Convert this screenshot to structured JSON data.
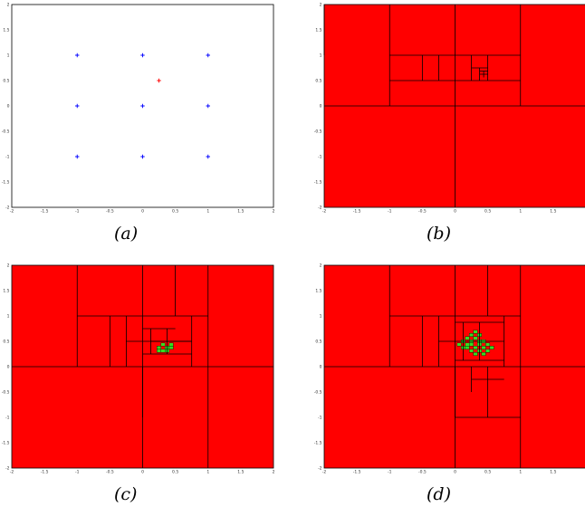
{
  "captions": {
    "a": "(a)",
    "b": "(b)",
    "c": "(c)",
    "d": "(d)"
  },
  "colors": {
    "fill": "#ff0000",
    "plus_grid": "#0000ff",
    "plus_target": "#ff0000",
    "leaf": "#33dd22",
    "line": "#000000"
  },
  "chart_data": [
    {
      "type": "scatter",
      "panel": "a",
      "xlim": [
        -2,
        2
      ],
      "ylim": [
        -2,
        2
      ],
      "xticks": [
        "-2",
        "-1.5",
        "-1",
        "-0.5",
        "0",
        "0.5",
        "1",
        "1.5",
        "2"
      ],
      "yticks": [
        "2",
        "1.5",
        "1",
        "0.5",
        "0",
        "-0.5",
        "-1",
        "-1.5",
        "-2"
      ],
      "series": [
        {
          "points": [
            [
              -1,
              1
            ],
            [
              0,
              1
            ],
            [
              1,
              1
            ],
            [
              -1,
              0
            ],
            [
              0,
              0
            ],
            [
              1,
              0
            ],
            [
              -1,
              -1
            ],
            [
              0,
              -1
            ],
            [
              1,
              -1
            ]
          ],
          "color": "#0000ff",
          "marker": "+"
        },
        {
          "points": [
            [
              0.25,
              0.5
            ]
          ],
          "color": "#ff0000",
          "marker": "+"
        }
      ]
    },
    {
      "type": "subdivision",
      "panel": "b",
      "xlim": [
        -2,
        2
      ],
      "ylim": [
        -2,
        2
      ],
      "xticks": [
        "-2",
        "-1.5",
        "-1",
        "-0.5",
        "0",
        "0.5",
        "1",
        "1.5"
      ],
      "yticks": [
        "2",
        "1.5",
        "1",
        "0.5",
        "0",
        "-0.5",
        "-1",
        "-1.5",
        "-2"
      ],
      "lines": [
        [
          [
            -2,
            0
          ],
          [
            2,
            0
          ]
        ],
        [
          [
            0,
            -2
          ],
          [
            0,
            2
          ]
        ],
        [
          [
            -1,
            0
          ],
          [
            -1,
            2
          ]
        ],
        [
          [
            1,
            0
          ],
          [
            1,
            2
          ]
        ],
        [
          [
            -1,
            1
          ],
          [
            1,
            1
          ]
        ],
        [
          [
            -2,
            1
          ],
          [
            -2,
            2
          ]
        ],
        [
          [
            -1,
            0.5
          ],
          [
            1,
            0.5
          ]
        ],
        [
          [
            -0.5,
            0.5
          ],
          [
            -0.5,
            1
          ]
        ],
        [
          [
            0.5,
            0.5
          ],
          [
            0.5,
            1
          ]
        ],
        [
          [
            -0.25,
            0.5
          ],
          [
            -0.25,
            1
          ]
        ],
        [
          [
            0.25,
            0.5
          ],
          [
            0.25,
            1
          ]
        ],
        [
          [
            0.25,
            0.75
          ],
          [
            0.5,
            0.75
          ]
        ],
        [
          [
            0.375,
            0.5
          ],
          [
            0.375,
            0.75
          ]
        ],
        [
          [
            0.375,
            0.625
          ],
          [
            0.5,
            0.625
          ]
        ],
        [
          [
            0.4375,
            0.5625
          ],
          [
            0.4375,
            0.6875
          ]
        ],
        [
          [
            0.375,
            0.6875
          ],
          [
            0.5,
            0.6875
          ]
        ]
      ],
      "leaf_cells": []
    },
    {
      "type": "subdivision",
      "panel": "c",
      "xlim": [
        -2,
        2
      ],
      "ylim": [
        -2,
        2
      ],
      "xticks": [
        "-2",
        "-1.5",
        "-1",
        "-0.5",
        "0",
        "0.5",
        "1",
        "1.5",
        "2"
      ],
      "yticks": [
        "2",
        "1.5",
        "1",
        "0.5",
        "0",
        "-0.5",
        "-1",
        "-1.5",
        "-2"
      ],
      "lines": [
        [
          [
            -2,
            0
          ],
          [
            2,
            0
          ]
        ],
        [
          [
            0,
            -2
          ],
          [
            0,
            2
          ]
        ],
        [
          [
            -1,
            0
          ],
          [
            -1,
            2
          ]
        ],
        [
          [
            1,
            0
          ],
          [
            1,
            2
          ]
        ],
        [
          [
            -1,
            1
          ],
          [
            1,
            1
          ]
        ],
        [
          [
            0,
            -1
          ],
          [
            0,
            0
          ]
        ],
        [
          [
            1,
            -2
          ],
          [
            1,
            0
          ]
        ],
        [
          [
            0.5,
            1
          ],
          [
            0.5,
            2
          ]
        ],
        [
          [
            -0.5,
            0
          ],
          [
            -0.5,
            1
          ]
        ],
        [
          [
            -0.25,
            0
          ],
          [
            -0.25,
            1
          ]
        ],
        [
          [
            0.75,
            0
          ],
          [
            0.75,
            1
          ]
        ],
        [
          [
            -0.25,
            0.5
          ],
          [
            0.75,
            0.5
          ]
        ],
        [
          [
            0,
            0.75
          ],
          [
            0.5,
            0.75
          ]
        ],
        [
          [
            0.125,
            0.25
          ],
          [
            0.125,
            0.75
          ]
        ],
        [
          [
            0.375,
            0.25
          ],
          [
            0.375,
            0.75
          ]
        ],
        [
          [
            0.125,
            0.5
          ],
          [
            0.75,
            0.5
          ]
        ],
        [
          [
            0,
            0.25
          ],
          [
            0.75,
            0.25
          ]
        ]
      ],
      "leaf_cells": [
        [
          0.25,
          0.375
        ],
        [
          0.3125,
          0.4375
        ],
        [
          0.375,
          0.375
        ],
        [
          0.4375,
          0.4375
        ],
        [
          0.3125,
          0.3125
        ],
        [
          0.375,
          0.3125
        ],
        [
          0.25,
          0.3125
        ],
        [
          0.4375,
          0.375
        ]
      ]
    },
    {
      "type": "subdivision",
      "panel": "d",
      "xlim": [
        -2,
        2
      ],
      "ylim": [
        -2,
        2
      ],
      "xticks": [
        "-2",
        "-1.5",
        "-1",
        "-0.5",
        "0",
        "0.5",
        "1",
        "1.5"
      ],
      "yticks": [
        "2",
        "1.5",
        "1",
        "0.5",
        "0",
        "-0.5",
        "-1",
        "-1.5",
        "-2"
      ],
      "lines": [
        [
          [
            -2,
            0
          ],
          [
            2,
            0
          ]
        ],
        [
          [
            0,
            -2
          ],
          [
            0,
            2
          ]
        ],
        [
          [
            -1,
            0
          ],
          [
            -1,
            2
          ]
        ],
        [
          [
            1,
            0
          ],
          [
            1,
            2
          ]
        ],
        [
          [
            -1,
            1
          ],
          [
            1,
            1
          ]
        ],
        [
          [
            0,
            -1
          ],
          [
            0,
            0
          ]
        ],
        [
          [
            1,
            -2
          ],
          [
            1,
            0
          ]
        ],
        [
          [
            0,
            -1
          ],
          [
            1,
            -1
          ]
        ],
        [
          [
            0.5,
            1
          ],
          [
            0.5,
            2
          ]
        ],
        [
          [
            -0.5,
            0
          ],
          [
            -0.5,
            1
          ]
        ],
        [
          [
            -0.25,
            0
          ],
          [
            -0.25,
            1
          ]
        ],
        [
          [
            0.75,
            0
          ],
          [
            0.75,
            1
          ]
        ],
        [
          [
            -0.25,
            0.5
          ],
          [
            0.75,
            0.5
          ]
        ],
        [
          [
            0.25,
            -0.5
          ],
          [
            0.25,
            0
          ]
        ],
        [
          [
            0.5,
            -1
          ],
          [
            0.5,
            0
          ]
        ],
        [
          [
            0.25,
            -0.25
          ],
          [
            0.75,
            -0.25
          ]
        ],
        [
          [
            0.125,
            0.125
          ],
          [
            0.125,
            0.875
          ]
        ],
        [
          [
            0.375,
            0.125
          ],
          [
            0.375,
            0.875
          ]
        ],
        [
          [
            0,
            0.125
          ],
          [
            0.75,
            0.125
          ]
        ],
        [
          [
            0,
            0.875
          ],
          [
            0.75,
            0.875
          ]
        ]
      ],
      "leaf_cells": [
        [
          0.125,
          0.5
        ],
        [
          0.1875,
          0.5625
        ],
        [
          0.25,
          0.625
        ],
        [
          0.3125,
          0.5625
        ],
        [
          0.375,
          0.5
        ],
        [
          0.25,
          0.4375
        ],
        [
          0.3125,
          0.375
        ],
        [
          0.375,
          0.3125
        ],
        [
          0.4375,
          0.375
        ],
        [
          0.5,
          0.4375
        ],
        [
          0.1875,
          0.375
        ],
        [
          0.25,
          0.3125
        ],
        [
          0.3125,
          0.25
        ],
        [
          0.4375,
          0.25
        ],
        [
          0.5,
          0.3125
        ],
        [
          0.5625,
          0.375
        ],
        [
          0.1875,
          0.4375
        ],
        [
          0.0625,
          0.4375
        ],
        [
          0.125,
          0.375
        ],
        [
          0.375,
          0.4375
        ],
        [
          0.4375,
          0.5
        ],
        [
          0.25,
          0.5
        ],
        [
          0.3125,
          0.6875
        ],
        [
          0.375,
          0.625
        ]
      ]
    }
  ]
}
